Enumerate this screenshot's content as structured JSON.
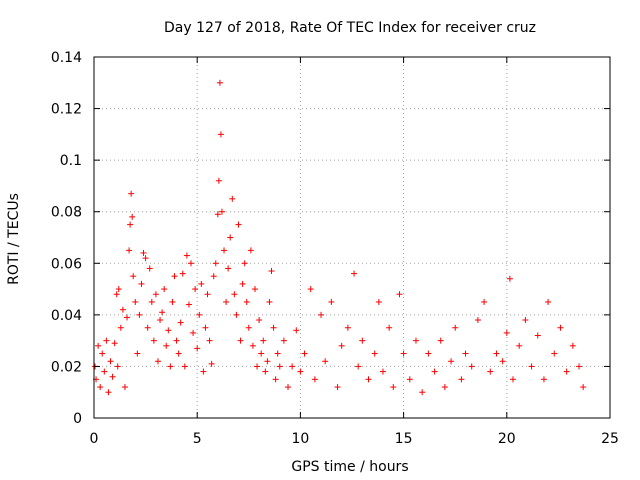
{
  "chart_data": {
    "type": "scatter",
    "title": "Day 127 of 2018, Rate Of TEC Index for receiver cruz",
    "xlabel": "GPS time / hours",
    "ylabel": "ROTI / TECUs",
    "xlim": [
      0,
      25
    ],
    "ylim": [
      0,
      0.14
    ],
    "xticks": [
      0,
      5,
      10,
      15,
      20,
      25
    ],
    "yticks": [
      0,
      0.02,
      0.04,
      0.06,
      0.08,
      0.1,
      0.12,
      0.14
    ],
    "xtick_labels": [
      "0",
      "5",
      "10",
      "15",
      "20",
      "25"
    ],
    "ytick_labels": [
      "0",
      "0.02",
      "0.04",
      "0.06",
      "0.08",
      "0.1",
      "0.12",
      "0.14"
    ],
    "grid": true,
    "marker": "+",
    "color": "#ff0000",
    "series": [
      {
        "name": "ROTI",
        "points": [
          [
            0.05,
            0.02
          ],
          [
            0.1,
            0.015
          ],
          [
            0.2,
            0.028
          ],
          [
            0.3,
            0.012
          ],
          [
            0.4,
            0.025
          ],
          [
            0.5,
            0.018
          ],
          [
            0.6,
            0.03
          ],
          [
            0.7,
            0.01
          ],
          [
            0.8,
            0.022
          ],
          [
            0.9,
            0.016
          ],
          [
            1.0,
            0.029
          ],
          [
            1.1,
            0.048
          ],
          [
            1.15,
            0.02
          ],
          [
            1.2,
            0.05
          ],
          [
            1.3,
            0.035
          ],
          [
            1.4,
            0.042
          ],
          [
            1.5,
            0.012
          ],
          [
            1.6,
            0.039
          ],
          [
            1.7,
            0.065
          ],
          [
            1.75,
            0.075
          ],
          [
            1.8,
            0.087
          ],
          [
            1.85,
            0.078
          ],
          [
            1.9,
            0.055
          ],
          [
            2.0,
            0.045
          ],
          [
            2.1,
            0.025
          ],
          [
            2.2,
            0.04
          ],
          [
            2.3,
            0.052
          ],
          [
            2.4,
            0.064
          ],
          [
            2.5,
            0.062
          ],
          [
            2.6,
            0.035
          ],
          [
            2.7,
            0.058
          ],
          [
            2.8,
            0.045
          ],
          [
            2.9,
            0.03
          ],
          [
            3.0,
            0.048
          ],
          [
            3.1,
            0.022
          ],
          [
            3.2,
            0.038
          ],
          [
            3.3,
            0.041
          ],
          [
            3.4,
            0.05
          ],
          [
            3.5,
            0.028
          ],
          [
            3.6,
            0.034
          ],
          [
            3.7,
            0.02
          ],
          [
            3.8,
            0.045
          ],
          [
            3.9,
            0.055
          ],
          [
            4.0,
            0.03
          ],
          [
            4.1,
            0.025
          ],
          [
            4.2,
            0.037
          ],
          [
            4.3,
            0.056
          ],
          [
            4.4,
            0.02
          ],
          [
            4.5,
            0.063
          ],
          [
            4.6,
            0.044
          ],
          [
            4.7,
            0.06
          ],
          [
            4.8,
            0.033
          ],
          [
            4.9,
            0.05
          ],
          [
            5.0,
            0.027
          ],
          [
            5.1,
            0.04
          ],
          [
            5.2,
            0.052
          ],
          [
            5.3,
            0.018
          ],
          [
            5.4,
            0.035
          ],
          [
            5.5,
            0.048
          ],
          [
            5.6,
            0.03
          ],
          [
            5.7,
            0.021
          ],
          [
            5.8,
            0.055
          ],
          [
            5.9,
            0.06
          ],
          [
            6.0,
            0.079
          ],
          [
            6.05,
            0.092
          ],
          [
            6.1,
            0.13
          ],
          [
            6.15,
            0.11
          ],
          [
            6.2,
            0.08
          ],
          [
            6.3,
            0.065
          ],
          [
            6.4,
            0.045
          ],
          [
            6.5,
            0.058
          ],
          [
            6.6,
            0.07
          ],
          [
            6.7,
            0.085
          ],
          [
            6.8,
            0.048
          ],
          [
            6.9,
            0.04
          ],
          [
            7.0,
            0.075
          ],
          [
            7.1,
            0.03
          ],
          [
            7.2,
            0.052
          ],
          [
            7.3,
            0.06
          ],
          [
            7.4,
            0.045
          ],
          [
            7.5,
            0.035
          ],
          [
            7.6,
            0.065
          ],
          [
            7.7,
            0.028
          ],
          [
            7.8,
            0.05
          ],
          [
            7.9,
            0.02
          ],
          [
            8.0,
            0.038
          ],
          [
            8.1,
            0.025
          ],
          [
            8.2,
            0.03
          ],
          [
            8.3,
            0.018
          ],
          [
            8.4,
            0.022
          ],
          [
            8.5,
            0.045
          ],
          [
            8.6,
            0.057
          ],
          [
            8.7,
            0.035
          ],
          [
            8.8,
            0.015
          ],
          [
            8.9,
            0.025
          ],
          [
            9.0,
            0.02
          ],
          [
            9.2,
            0.03
          ],
          [
            9.4,
            0.012
          ],
          [
            9.6,
            0.02
          ],
          [
            9.8,
            0.034
          ],
          [
            10.0,
            0.018
          ],
          [
            10.2,
            0.025
          ],
          [
            10.5,
            0.05
          ],
          [
            10.7,
            0.015
          ],
          [
            11.0,
            0.04
          ],
          [
            11.2,
            0.022
          ],
          [
            11.5,
            0.045
          ],
          [
            11.8,
            0.012
          ],
          [
            12.0,
            0.028
          ],
          [
            12.3,
            0.035
          ],
          [
            12.6,
            0.056
          ],
          [
            12.8,
            0.02
          ],
          [
            13.0,
            0.03
          ],
          [
            13.3,
            0.015
          ],
          [
            13.6,
            0.025
          ],
          [
            13.8,
            0.045
          ],
          [
            14.0,
            0.018
          ],
          [
            14.3,
            0.035
          ],
          [
            14.5,
            0.012
          ],
          [
            14.8,
            0.048
          ],
          [
            15.0,
            0.025
          ],
          [
            15.3,
            0.015
          ],
          [
            15.6,
            0.03
          ],
          [
            15.9,
            0.01
          ],
          [
            16.2,
            0.025
          ],
          [
            16.5,
            0.018
          ],
          [
            16.8,
            0.03
          ],
          [
            17.0,
            0.012
          ],
          [
            17.3,
            0.022
          ],
          [
            17.5,
            0.035
          ],
          [
            17.8,
            0.015
          ],
          [
            18.0,
            0.025
          ],
          [
            18.3,
            0.02
          ],
          [
            18.6,
            0.038
          ],
          [
            18.9,
            0.045
          ],
          [
            19.2,
            0.018
          ],
          [
            19.5,
            0.025
          ],
          [
            19.8,
            0.022
          ],
          [
            20.0,
            0.033
          ],
          [
            20.15,
            0.054
          ],
          [
            20.3,
            0.015
          ],
          [
            20.6,
            0.028
          ],
          [
            20.9,
            0.038
          ],
          [
            21.2,
            0.02
          ],
          [
            21.5,
            0.032
          ],
          [
            21.8,
            0.015
          ],
          [
            22.0,
            0.045
          ],
          [
            22.3,
            0.025
          ],
          [
            22.6,
            0.035
          ],
          [
            22.9,
            0.018
          ],
          [
            23.2,
            0.028
          ],
          [
            23.5,
            0.02
          ],
          [
            23.7,
            0.012
          ]
        ]
      }
    ]
  }
}
